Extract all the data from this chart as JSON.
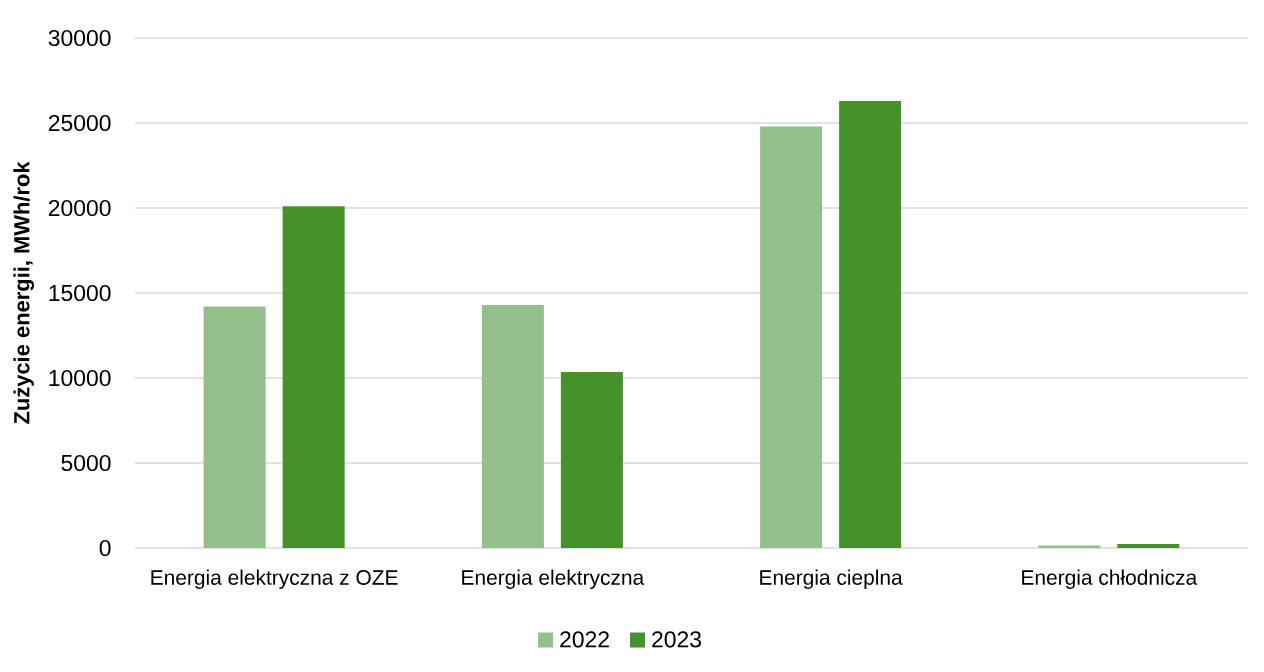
{
  "chart_data": {
    "type": "bar",
    "ylabel": "Zużycie energii, MWh/rok",
    "categories": [
      "Energia elektryczna z OZE",
      "Energia elektryczna",
      "Energia cieplna",
      "Energia chłodnicza"
    ],
    "series": [
      {
        "name": "2022",
        "color": "#93c08a",
        "values": [
          14200,
          14300,
          24800,
          150
        ]
      },
      {
        "name": "2023",
        "color": "#45922a",
        "values": [
          20100,
          10350,
          26300,
          230
        ]
      }
    ],
    "ylim": [
      0,
      30000
    ],
    "yticks": [
      0,
      5000,
      10000,
      15000,
      20000,
      25000,
      30000
    ],
    "grid": "y",
    "legend": "bottom"
  }
}
